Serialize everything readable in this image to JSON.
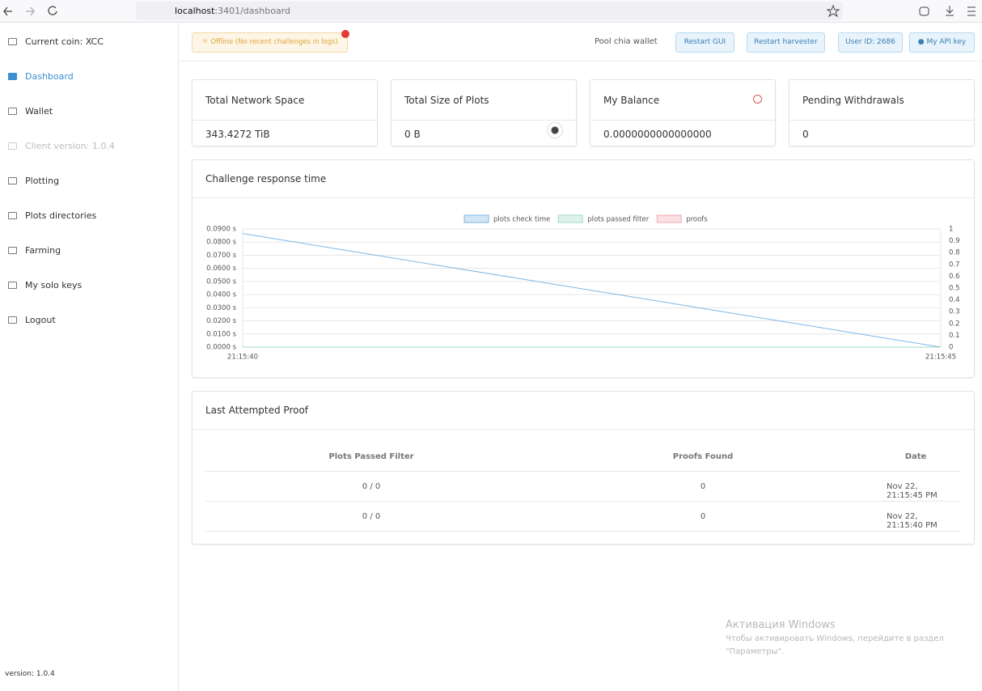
{
  "browser": {
    "host": "localhost",
    "path": ":3401/dashboard"
  },
  "sidebar": {
    "items": [
      "Current coin: XCC",
      "Dashboard",
      "Wallet",
      "Client version: 1.0.4",
      "Plotting",
      "Plots directories",
      "Farming",
      "My solo keys",
      "Logout"
    ],
    "version": "version: 1.0.4"
  },
  "header": {
    "status": "Offline (No recent challenges in logs)",
    "pool": "Pool chia wallet",
    "buttons": [
      "Restart GUI",
      "Restart harvester",
      "User ID: 2686",
      "My API key"
    ]
  },
  "cards": [
    {
      "title": "Total Network Space",
      "value": "343.4272 TiB"
    },
    {
      "title": "Total Size of Plots",
      "value": "0 B"
    },
    {
      "title": "My Balance",
      "value": "0.0000000000000000"
    },
    {
      "title": "Pending Withdrawals",
      "value": "0"
    }
  ],
  "chart_data": {
    "type": "line",
    "title": "Challenge response time",
    "x": [
      "21:15:40",
      "21:15:45"
    ],
    "series": [
      {
        "name": "plots check time",
        "color": "#7fb6e2",
        "values": [
          0.0865,
          0
        ]
      },
      {
        "name": "plots passed filter",
        "color": "#9ed9c6",
        "values": [
          0,
          0
        ],
        "axis": "y2"
      },
      {
        "name": "proofs",
        "color": "#f0a9b0",
        "values": [
          0,
          0
        ],
        "axis": "y2"
      }
    ],
    "ylim": [
      0,
      0.09
    ],
    "yticks": [
      {
        "value": 0,
        "label": "0.0000 s"
      },
      {
        "value": 0.01,
        "label": "0.0100 s"
      },
      {
        "value": 0.02,
        "label": "0.0200 s"
      },
      {
        "value": 0.03,
        "label": "0.0300 s"
      },
      {
        "value": 0.04,
        "label": "0.0400 s"
      },
      {
        "value": 0.05,
        "label": "0.0500 s"
      },
      {
        "value": 0.06,
        "label": "0.0600 s"
      },
      {
        "value": 0.07,
        "label": "0.0700 s"
      },
      {
        "value": 0.08,
        "label": "0.0800 s"
      },
      {
        "value": 0.09,
        "label": "0.0900 s"
      }
    ],
    "y2lim": [
      0,
      1
    ],
    "y2ticks": [
      0,
      0.1,
      0.2,
      0.3,
      0.4,
      0.5,
      0.6,
      0.7,
      0.8,
      0.9,
      1
    ],
    "grid": true,
    "legend": "top"
  },
  "table": {
    "title": "Last Attempted Proof",
    "columns": [
      "Plots Passed Filter",
      "Proofs Found",
      "Date"
    ],
    "rows": [
      [
        "0 / 0",
        "0",
        "Nov 22, 21:15:45 PM"
      ],
      [
        "0 / 0",
        "0",
        "Nov 22, 21:15:40 PM"
      ]
    ]
  },
  "watermark": {
    "title": "Активация Windows",
    "line1": "Чтобы активировать Windows, перейдите в раздел",
    "line2": "\"Параметры\"."
  }
}
